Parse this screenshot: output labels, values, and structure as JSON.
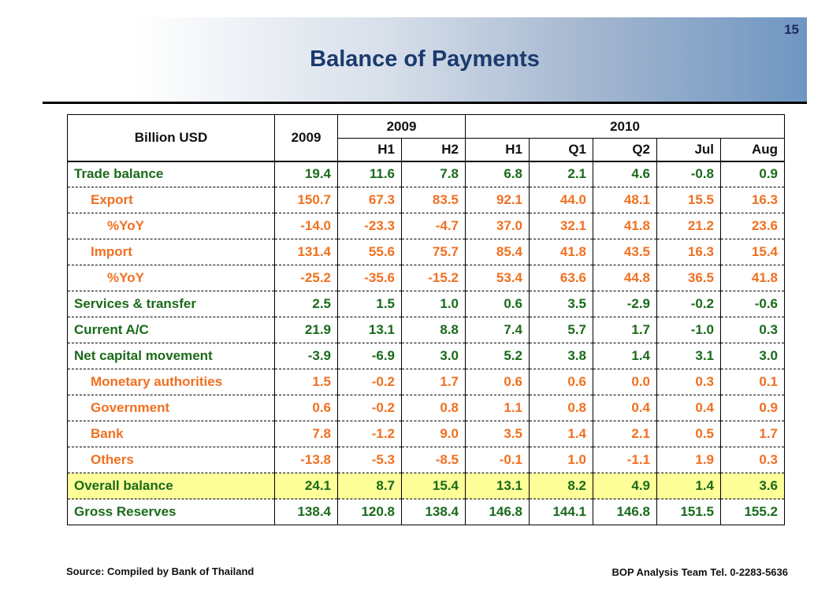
{
  "slide": {
    "page_number": "15",
    "title": "Balance of Payments"
  },
  "table": {
    "label_header": "Billion USD",
    "annual_header": "2009",
    "group_2009": "2009",
    "group_2010": "2010",
    "sub_headers": [
      "H1",
      "H2",
      "H1",
      "Q1",
      "Q2",
      "Jul",
      "Aug"
    ],
    "rows": [
      {
        "label": "Trade balance",
        "values": [
          "19.4",
          "11.6",
          "7.8",
          "6.8",
          "2.1",
          "4.6",
          "-0.8",
          "0.9"
        ]
      },
      {
        "label": "Export",
        "values": [
          "150.7",
          "67.3",
          "83.5",
          "92.1",
          "44.0",
          "48.1",
          "15.5",
          "16.3"
        ]
      },
      {
        "label": "%YoY",
        "values": [
          "-14.0",
          "-23.3",
          "-4.7",
          "37.0",
          "32.1",
          "41.8",
          "21.2",
          "23.6"
        ]
      },
      {
        "label": "Import",
        "values": [
          "131.4",
          "55.6",
          "75.7",
          "85.4",
          "41.8",
          "43.5",
          "16.3",
          "15.4"
        ]
      },
      {
        "label": "%YoY",
        "values": [
          "-25.2",
          "-35.6",
          "-15.2",
          "53.4",
          "63.6",
          "44.8",
          "36.5",
          "41.8"
        ]
      },
      {
        "label": "Services & transfer",
        "values": [
          "2.5",
          "1.5",
          "1.0",
          "0.6",
          "3.5",
          "-2.9",
          "-0.2",
          "-0.6"
        ]
      },
      {
        "label": "Current A/C",
        "values": [
          "21.9",
          "13.1",
          "8.8",
          "7.4",
          "5.7",
          "1.7",
          "-1.0",
          "0.3"
        ]
      },
      {
        "label": "Net capital movement",
        "values": [
          "-3.9",
          "-6.9",
          "3.0",
          "5.2",
          "3.8",
          "1.4",
          "3.1",
          "3.0"
        ]
      },
      {
        "label": "Monetary authorities",
        "values": [
          "1.5",
          "-0.2",
          "1.7",
          "0.6",
          "0.6",
          "0.0",
          "0.3",
          "0.1"
        ]
      },
      {
        "label": "Government",
        "values": [
          "0.6",
          "-0.2",
          "0.8",
          "1.1",
          "0.8",
          "0.4",
          "0.4",
          "0.9"
        ]
      },
      {
        "label": "Bank",
        "values": [
          "7.8",
          "-1.2",
          "9.0",
          "3.5",
          "1.4",
          "2.1",
          "0.5",
          "1.7"
        ]
      },
      {
        "label": "Others",
        "values": [
          "-13.8",
          "-5.3",
          "-8.5",
          "-0.1",
          "1.0",
          "-1.1",
          "1.9",
          "0.3"
        ]
      },
      {
        "label": "Overall balance",
        "values": [
          "24.1",
          "8.7",
          "15.4",
          "13.1",
          "8.2",
          "4.9",
          "1.4",
          "3.6"
        ]
      },
      {
        "label": "Gross Reserves",
        "values": [
          "138.4",
          "120.8",
          "138.4",
          "146.8",
          "144.1",
          "146.8",
          "151.5",
          "155.2"
        ]
      }
    ]
  },
  "footer": {
    "source": "Source: Compiled by Bank of Thailand",
    "contact": "BOP Analysis Team Tel. 0-2283-5636"
  },
  "colors": {
    "title": "#1b3a6e",
    "main_rows": "#1a6a1a",
    "sub_rows": "#f07020",
    "highlight_row": "#ffff99"
  }
}
